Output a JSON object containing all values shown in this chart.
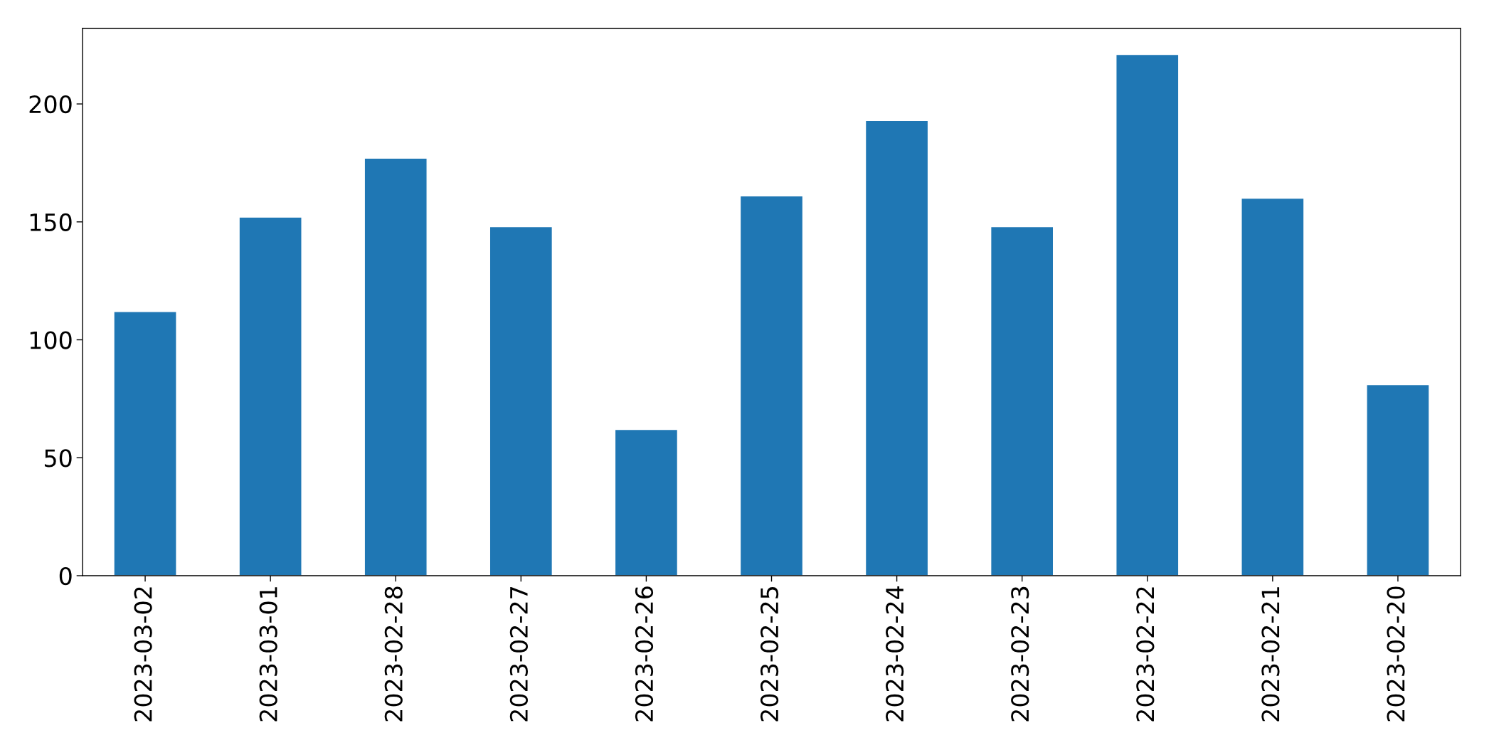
{
  "chart_data": {
    "type": "bar",
    "categories": [
      "2023-03-02",
      "2023-03-01",
      "2023-02-28",
      "2023-02-27",
      "2023-02-26",
      "2023-02-25",
      "2023-02-24",
      "2023-02-23",
      "2023-02-22",
      "2023-02-21",
      "2023-02-20"
    ],
    "values": [
      112,
      152,
      177,
      148,
      62,
      161,
      193,
      148,
      221,
      160,
      81
    ],
    "color": "#1f77b4",
    "ylim": [
      0,
      232
    ],
    "yticks": [
      0,
      50,
      100,
      150,
      200
    ]
  }
}
